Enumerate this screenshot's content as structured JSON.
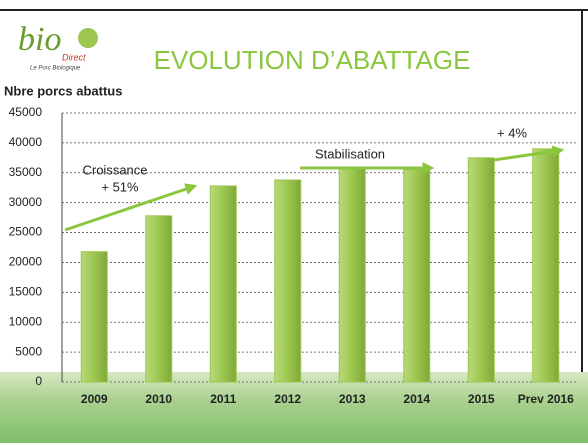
{
  "logo": {
    "name": "bio",
    "sub": "Direct",
    "tagline": "Le Porc Biologique"
  },
  "chart_data": {
    "type": "bar",
    "title": "EVOLUTION D’ABATTAGE",
    "y_label": "Nbre porcs abattus",
    "categories": [
      "2009",
      "2010",
      "2011",
      "2012",
      "2013",
      "2014",
      "2015",
      "Prev 2016"
    ],
    "values": [
      21800,
      27800,
      32800,
      33800,
      35800,
      35500,
      37500,
      39000
    ],
    "color": "#9cc64e",
    "ylim": [
      0,
      45000
    ],
    "yticks": [
      0,
      5000,
      10000,
      15000,
      20000,
      25000,
      30000,
      35000,
      40000,
      45000
    ],
    "grid": true,
    "annotations": [
      "Croissance",
      "+ 51%",
      "Stabilisation",
      "+ 4%"
    ]
  }
}
